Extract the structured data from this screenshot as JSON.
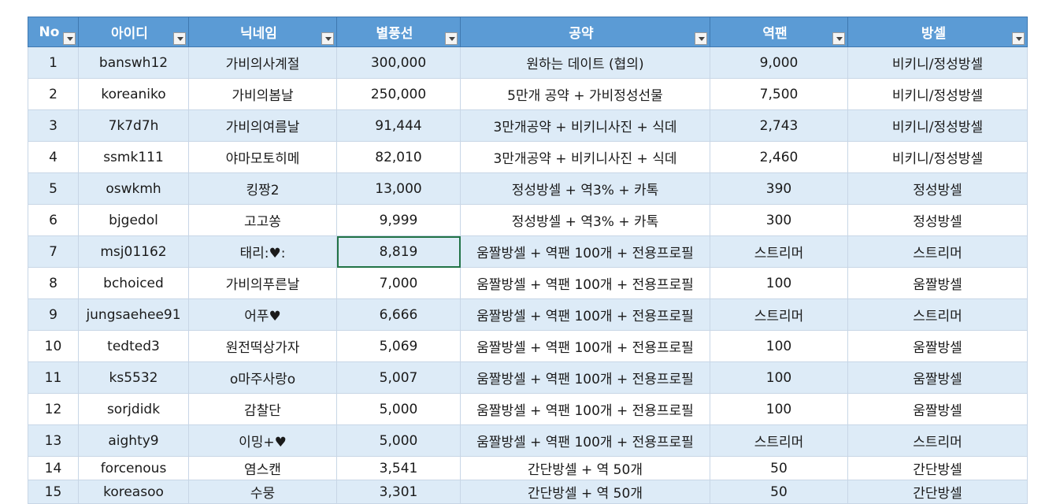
{
  "columns": [
    {
      "key": "no",
      "label": "No"
    },
    {
      "key": "id",
      "label": "아이디"
    },
    {
      "key": "nick",
      "label": "닉네임"
    },
    {
      "key": "balloons",
      "label": "별풍선"
    },
    {
      "key": "pledge",
      "label": "공약"
    },
    {
      "key": "reverse",
      "label": "역팬"
    },
    {
      "key": "room",
      "label": "방셀"
    }
  ],
  "rows": [
    [
      "1",
      "banswh12",
      "가비의사계절",
      "300,000",
      "원하는 데이트 (협의)",
      "9,000",
      "비키니/정성방셀"
    ],
    [
      "2",
      "koreaniko",
      "가비의봄날",
      "250,000",
      "5만개 공약 + 가비정성선물",
      "7,500",
      "비키니/정성방셀"
    ],
    [
      "3",
      "7k7d7h",
      "가비의여름날",
      "91,444",
      "3만개공약 + 비키니사진 + 식데",
      "2,743",
      "비키니/정성방셀"
    ],
    [
      "4",
      "ssmk111",
      "야마모토히메",
      "82,010",
      "3만개공약 + 비키니사진 + 식데",
      "2,460",
      "비키니/정성방셀"
    ],
    [
      "5",
      "oswkmh",
      "킹짱2",
      "13,000",
      "정성방셀 + 역3% + 카톡",
      "390",
      "정성방셀"
    ],
    [
      "6",
      "bjgedol",
      "고고쏭",
      "9,999",
      "정성방셀 + 역3% + 카톡",
      "300",
      "정성방셀"
    ],
    [
      "7",
      "msj01162",
      "태리:♥:",
      "8,819",
      "움짤방셀 + 역팬 100개 + 전용프로필",
      "스트리머",
      "스트리머"
    ],
    [
      "8",
      "bchoiced",
      "가비의푸른날",
      "7,000",
      "움짤방셀 + 역팬 100개 + 전용프로필",
      "100",
      "움짤방셀"
    ],
    [
      "9",
      "jungsaehee91",
      "어푸♥",
      "6,666",
      "움짤방셀 + 역팬 100개 + 전용프로필",
      "스트리머",
      "스트리머"
    ],
    [
      "10",
      "tedted3",
      "원전떡상가자",
      "5,069",
      "움짤방셀 + 역팬 100개 + 전용프로필",
      "100",
      "움짤방셀"
    ],
    [
      "11",
      "ks5532",
      "o마주사랑o",
      "5,007",
      "움짤방셀 + 역팬 100개 + 전용프로필",
      "100",
      "움짤방셀"
    ],
    [
      "12",
      "sorjdidk",
      "감찰단",
      "5,000",
      "움짤방셀 + 역팬 100개 + 전용프로필",
      "100",
      "움짤방셀"
    ],
    [
      "13",
      "aighty9",
      "이밍+♥",
      "5,000",
      "움짤방셀 + 역팬 100개 + 전용프로필",
      "스트리머",
      "스트리머"
    ],
    [
      "14",
      "forcenous",
      "염스캔",
      "3,541",
      "간단방셀 + 역 50개",
      "50",
      "간단방셀"
    ],
    [
      "15",
      "koreasoo",
      "수뭉",
      "3,301",
      "간단방셀 + 역 50개",
      "50",
      "간단방셀"
    ]
  ],
  "selected_cell": {
    "row": 6,
    "col": 3
  },
  "colors": {
    "header_bg": "#5b9bd5",
    "band_bg": "#ddebf7",
    "selection": "#217346"
  },
  "icons": {
    "filter": "filter-dropdown-icon"
  }
}
